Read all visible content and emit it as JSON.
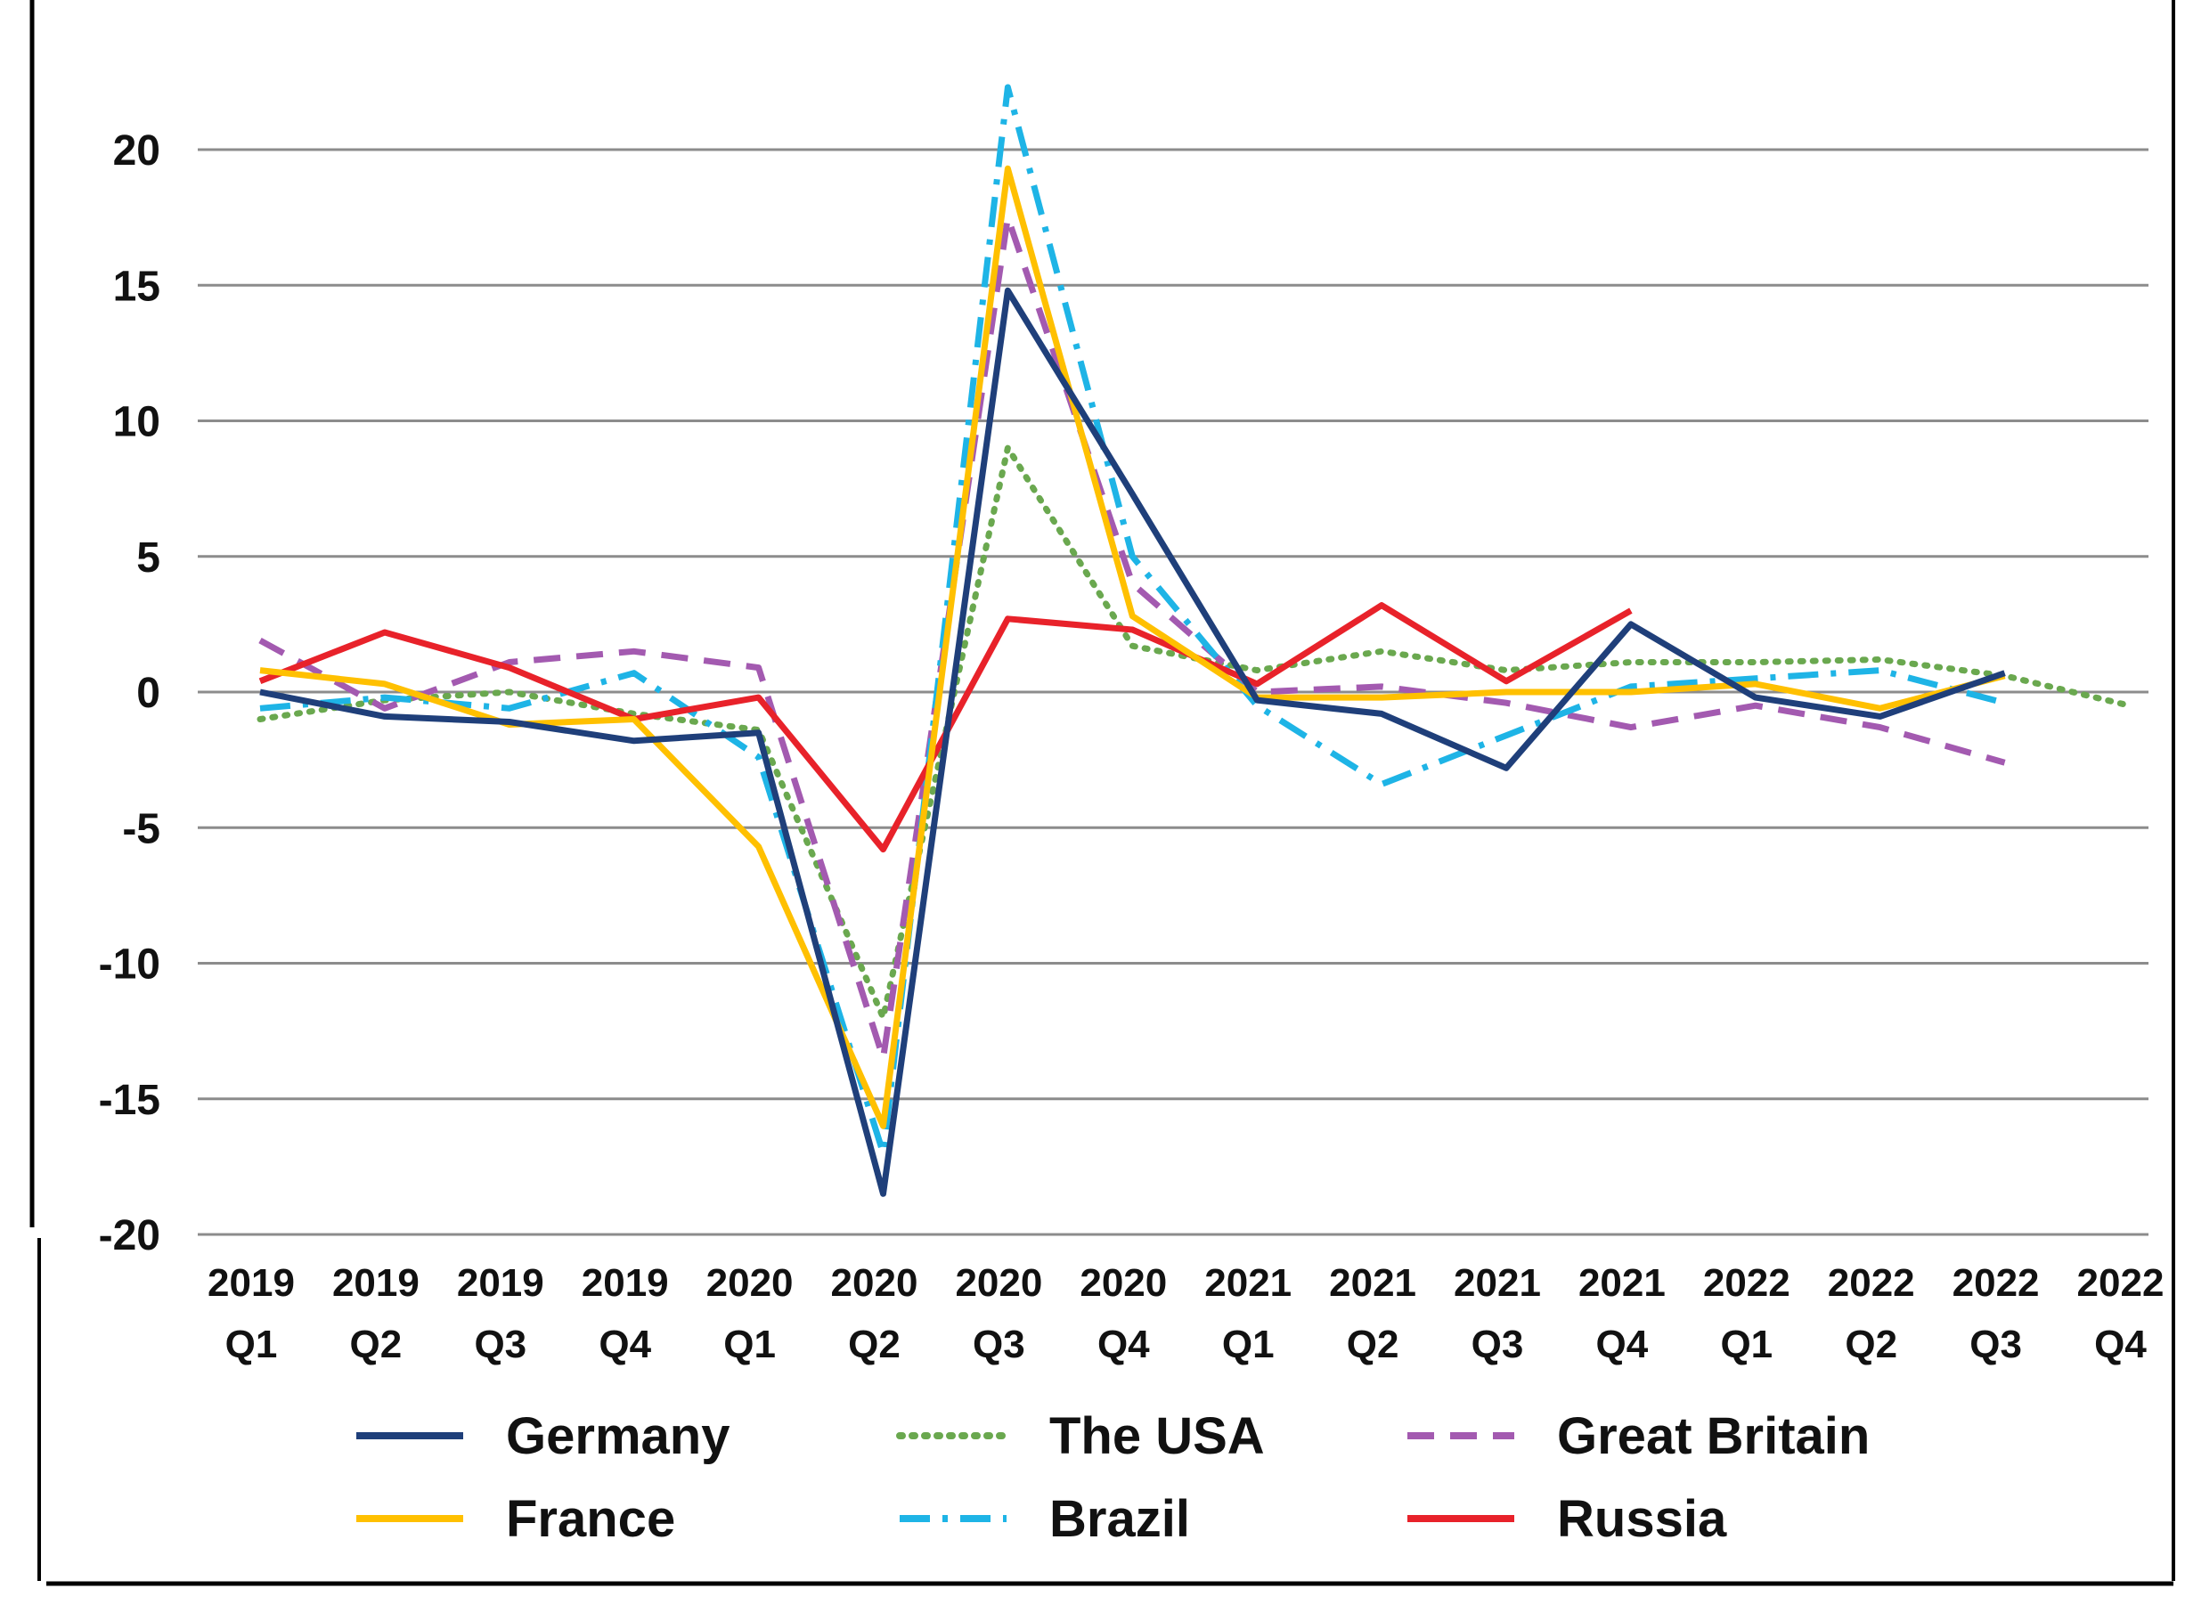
{
  "chart_data": {
    "type": "line",
    "title": "",
    "xlabel": "",
    "ylabel": "",
    "ylim": [
      -20,
      22
    ],
    "yticks": [
      "20",
      "15",
      "10",
      "5",
      "0",
      "-5",
      "-10",
      "-15",
      "-20"
    ],
    "ytick_values": [
      20,
      15,
      10,
      5,
      0,
      -5,
      -10,
      -15,
      -20
    ],
    "grid": "horizontal",
    "legend_position": "bottom",
    "categories": [
      {
        "year": "2019",
        "q": "Q1"
      },
      {
        "year": "2019",
        "q": "Q2"
      },
      {
        "year": "2019",
        "q": "Q3"
      },
      {
        "year": "2019",
        "q": "Q4"
      },
      {
        "year": "2020",
        "q": "Q1"
      },
      {
        "year": "2020",
        "q": "Q2"
      },
      {
        "year": "2020",
        "q": "Q3"
      },
      {
        "year": "2020",
        "q": "Q4"
      },
      {
        "year": "2021",
        "q": "Q1"
      },
      {
        "year": "2021",
        "q": "Q2"
      },
      {
        "year": "2021",
        "q": "Q3"
      },
      {
        "year": "2021",
        "q": "Q4"
      },
      {
        "year": "2022",
        "q": "Q1"
      },
      {
        "year": "2022",
        "q": "Q2"
      },
      {
        "year": "2022",
        "q": "Q3"
      },
      {
        "year": "2022",
        "q": "Q4"
      }
    ],
    "series": [
      {
        "name": "Germany",
        "color": "#1f3f7a",
        "dash": "solid",
        "values": [
          0.0,
          -0.9,
          -1.1,
          -1.8,
          -1.5,
          -18.5,
          14.8,
          7.3,
          -0.3,
          -0.8,
          -2.8,
          2.5,
          -0.2,
          -0.9,
          0.7,
          null
        ]
      },
      {
        "name": "The USA",
        "color": "#6aa84f",
        "dash": "dot",
        "values": [
          -1.0,
          -0.3,
          0.0,
          -0.8,
          -1.4,
          -12.0,
          9.0,
          1.7,
          0.8,
          1.5,
          0.8,
          1.1,
          1.1,
          1.2,
          0.6,
          -0.5
        ]
      },
      {
        "name": "Great Britain",
        "color": "#a35ab0",
        "dash": "dash",
        "values": [
          1.9,
          -0.6,
          1.1,
          1.5,
          0.9,
          -13.5,
          17.5,
          4.0,
          0.0,
          0.2,
          -0.4,
          -1.3,
          -0.5,
          -1.3,
          -2.6,
          null
        ]
      },
      {
        "name": "France",
        "color": "#ffc000",
        "dash": "solid",
        "values": [
          0.8,
          0.3,
          -1.2,
          -1.0,
          -5.7,
          -16.0,
          19.3,
          2.8,
          -0.2,
          -0.2,
          0.0,
          0.0,
          0.3,
          -0.6,
          0.6,
          null
        ]
      },
      {
        "name": "Brazil",
        "color": "#1eb4e6",
        "dash": "dashdot",
        "values": [
          -0.6,
          -0.2,
          -0.6,
          0.7,
          -2.4,
          -17.0,
          22.3,
          5.0,
          -0.5,
          -3.4,
          -1.6,
          0.2,
          0.5,
          0.8,
          -0.4,
          null
        ]
      },
      {
        "name": "Russia",
        "color": "#e8222a",
        "dash": "solid",
        "values": [
          0.4,
          2.2,
          0.9,
          -1.0,
          -0.2,
          -5.8,
          2.7,
          2.3,
          0.3,
          3.2,
          0.4,
          3.0,
          null,
          null,
          null,
          null
        ]
      }
    ]
  }
}
